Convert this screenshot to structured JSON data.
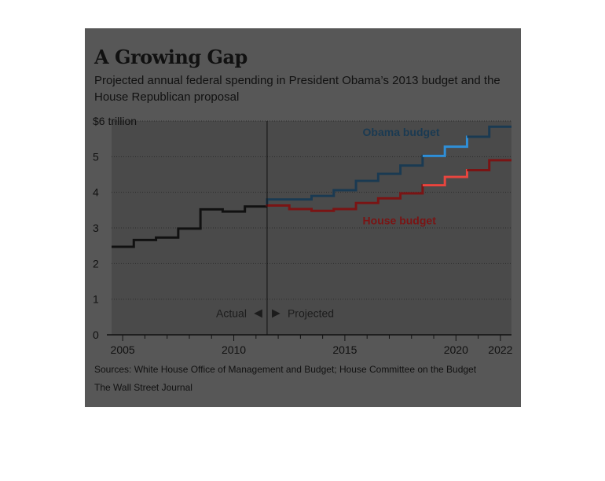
{
  "title": "A Growing Gap",
  "subtitle": "Projected annual federal spending in President Obama’s 2013 budget and the House Republican proposal",
  "sources": "Sources: White House Office of Management and Budget; House Committee on the Budget",
  "credit": "The Wall Street Journal",
  "annotations": {
    "actual": "Actual",
    "projected": "Projected",
    "left_arrow": "◀",
    "right_arrow": "▶"
  },
  "colors": {
    "actual": "#111111",
    "obama": "#1a3a52",
    "obama_highlight": "#2f8fd8",
    "house": "#7a1414",
    "house_highlight": "#e8463f",
    "panel_background": "#575757",
    "plot_background": "#4a4a4a",
    "gridline": "#2a2a2a"
  },
  "chart_data": {
    "type": "line",
    "step": true,
    "title": "A Growing Gap",
    "ylim": [
      0,
      6
    ],
    "xlim": [
      2004.5,
      2022.5
    ],
    "y_ticks": [
      0,
      1,
      2,
      3,
      4,
      5,
      6
    ],
    "y_tick_labels": [
      "0",
      "1",
      "2",
      "3",
      "4",
      "5",
      "$6 trillion"
    ],
    "x_ticks": [
      2005,
      2010,
      2015,
      2020,
      2022
    ],
    "x_tick_labels": [
      "2005",
      "2010",
      "2015",
      "2020",
      "2022"
    ],
    "grid": true,
    "projection_start": 2011.5,
    "series": [
      {
        "key": "actual",
        "x": [
          2005,
          2006,
          2007,
          2008,
          2009,
          2010,
          2011
        ],
        "values": [
          2.47,
          2.66,
          2.73,
          2.98,
          3.52,
          3.46,
          3.6
        ]
      },
      {
        "key": "obama",
        "name": "Obama budget",
        "x": [
          2012,
          2013,
          2014,
          2015,
          2016,
          2017,
          2018,
          2019,
          2020,
          2021,
          2022
        ],
        "values": [
          3.8,
          3.8,
          3.9,
          4.06,
          4.32,
          4.52,
          4.75,
          5.02,
          5.28,
          5.56,
          5.84
        ]
      },
      {
        "key": "house",
        "name": "House budget",
        "x": [
          2012,
          2013,
          2014,
          2015,
          2016,
          2017,
          2018,
          2019,
          2020,
          2021,
          2022
        ],
        "values": [
          3.63,
          3.53,
          3.48,
          3.53,
          3.7,
          3.83,
          3.97,
          4.2,
          4.43,
          4.62,
          4.9
        ]
      }
    ]
  }
}
